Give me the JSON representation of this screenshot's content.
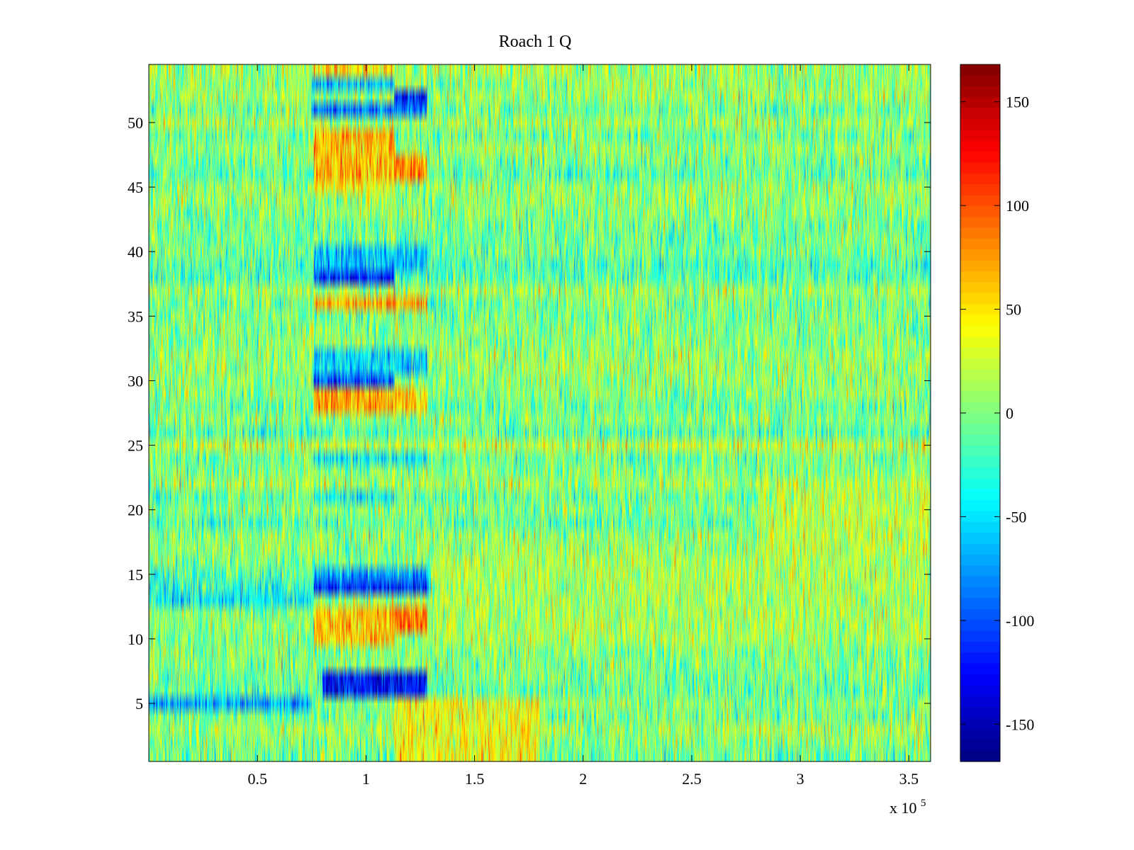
{
  "chart_data": {
    "type": "heatmap",
    "title": "Roach 1 Q",
    "xlabel": "",
    "ylabel": "",
    "x_multiplier_label": "x 10",
    "x_multiplier_exponent": "5",
    "x_multiplier": 100000,
    "xlim": [
      0,
      3.6
    ],
    "ylim": [
      0.5,
      54.5
    ],
    "x_ticks": [
      0.5,
      1,
      1.5,
      2,
      2.5,
      3,
      3.5
    ],
    "x_tick_labels": [
      "0.5",
      "1",
      "1.5",
      "2",
      "2.5",
      "3",
      "3.5"
    ],
    "y_ticks": [
      5,
      10,
      15,
      20,
      25,
      30,
      35,
      40,
      45,
      50
    ],
    "y_tick_labels": [
      "5",
      "10",
      "15",
      "20",
      "25",
      "30",
      "35",
      "40",
      "45",
      "50"
    ],
    "rows": 54,
    "colormap": "jet",
    "clim": [
      -168,
      168
    ],
    "colorbar": {
      "ticks": [
        150,
        100,
        50,
        0,
        -50,
        -100,
        -150
      ],
      "tick_labels": [
        "150",
        "100",
        "50",
        "0",
        "-50",
        "-100",
        "-150"
      ]
    },
    "background_mean": 0,
    "background_noise": 30,
    "regions": [
      {
        "rows": [
          54,
          54
        ],
        "x": [
          0.75,
          1.13
        ],
        "mean": 45
      },
      {
        "rows": [
          53,
          53
        ],
        "x": [
          0.75,
          1.13
        ],
        "mean": -60
      },
      {
        "rows": [
          52,
          52
        ],
        "x": [
          1.13,
          1.28
        ],
        "mean": -120
      },
      {
        "rows": [
          51,
          51
        ],
        "x": [
          0.75,
          1.28
        ],
        "mean": -85
      },
      {
        "rows": [
          46,
          49
        ],
        "x": [
          0.76,
          1.13
        ],
        "mean": 65
      },
      {
        "rows": [
          46,
          47
        ],
        "x": [
          1.13,
          1.28
        ],
        "mean": 85
      },
      {
        "rows": [
          45,
          45
        ],
        "x": [
          0.76,
          1.13
        ],
        "mean": 40
      },
      {
        "rows": [
          39,
          40
        ],
        "x": [
          0.76,
          1.28
        ],
        "mean": -60
      },
      {
        "rows": [
          38,
          38
        ],
        "x": [
          0.76,
          1.13
        ],
        "mean": -120
      },
      {
        "rows": [
          36,
          36
        ],
        "x": [
          0.76,
          1.28
        ],
        "mean": 70
      },
      {
        "rows": [
          31,
          32
        ],
        "x": [
          0.76,
          1.28
        ],
        "mean": -50
      },
      {
        "rows": [
          30,
          30
        ],
        "x": [
          0.76,
          1.13
        ],
        "mean": -100
      },
      {
        "rows": [
          28,
          29
        ],
        "x": [
          0.76,
          1.13
        ],
        "mean": 70
      },
      {
        "rows": [
          28,
          29
        ],
        "x": [
          1.13,
          1.28
        ],
        "mean": 55
      },
      {
        "rows": [
          24,
          24
        ],
        "x": [
          0.76,
          1.28
        ],
        "mean": -45
      },
      {
        "rows": [
          21,
          21
        ],
        "x": [
          0.76,
          1.13
        ],
        "mean": -45
      },
      {
        "rows": [
          15,
          15
        ],
        "x": [
          0.76,
          1.28
        ],
        "mean": -75
      },
      {
        "rows": [
          14,
          14
        ],
        "x": [
          0.76,
          1.28
        ],
        "mean": -110
      },
      {
        "rows": [
          13,
          13
        ],
        "x": [
          0,
          0.76
        ],
        "mean": -45
      },
      {
        "rows": [
          10,
          12
        ],
        "x": [
          0.76,
          1.13
        ],
        "mean": 60
      },
      {
        "rows": [
          11,
          12
        ],
        "x": [
          1.13,
          1.28
        ],
        "mean": 90
      },
      {
        "rows": [
          6,
          7
        ],
        "x": [
          0.8,
          1.28
        ],
        "mean": -120
      },
      {
        "rows": [
          5,
          5
        ],
        "x": [
          0,
          0.75
        ],
        "mean": -70
      },
      {
        "rows": [
          1,
          5
        ],
        "x": [
          1.13,
          1.8
        ],
        "mean": 40
      },
      {
        "rows": [
          10,
          16
        ],
        "x": [
          1.3,
          3.6
        ],
        "mean": 15
      },
      {
        "rows": [
          17,
          22
        ],
        "x": [
          2.8,
          3.6
        ],
        "mean": 20
      }
    ]
  }
}
